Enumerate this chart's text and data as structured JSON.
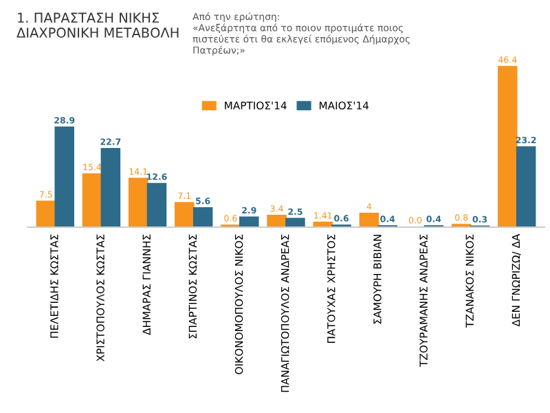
{
  "chart_data": {
    "type": "bar",
    "title": "1. ΠΑΡΑΣΤΑΣΗ ΝΙΚΗΣ\nΔΙΑΧΡΟΝΙΚΗ ΜΕΤΑΒΟΛΗ",
    "subtitle": "Από την ερώτηση:\n«Ανεξάρτητα από το ποιον προτιμάτε ποιος\nπιστεύετε ότι θα εκλεγεί επόμενος Δήμαρχος\nΠατρέων;»",
    "categories": [
      "ΠΕΛΕΤΙΔΗΣ ΚΩΣΤΑΣ",
      "ΧΡΙΣΤΟΠΟΥΛΟΣ ΚΩΣΤΑΣ",
      "ΔΗΜΑΡΑΣ ΓΙΑΝΝΗΣ",
      "ΣΠΑΡΤΙΝΟΣ ΚΩΣΤΑΣ",
      "ΟΙΚΟΝΟΜΟΠΟΥΛΟΣ ΝΙΚΟΣ",
      "ΠΑΝΑΓΙΩΤΟΠΟΥΛΟΣ ΑΝΔΡΕΑΣ",
      "ΠΑΤΟΥΧΑΣ ΧΡΗΣΤΟΣ",
      "ΣΑΜΟΥΡΗ ΒΙΒΙΑΝ",
      "ΤΖΟΥΡΑΜΑΝΗΣ ΑΝΔΡΕΑΣ",
      "ΤΖΑΝΑΚΟΣ ΝΙΚΟΣ",
      "ΔΕΝ ΓΝΩΡΙΖΩ/ ΔΑ"
    ],
    "series": [
      {
        "name": "ΜΑΡΤΙΟΣ'14",
        "color": "#f7941d",
        "values": [
          7.5,
          15.4,
          14.1,
          7.1,
          0.6,
          3.4,
          1.41,
          4,
          0.0,
          0.8,
          46.4
        ],
        "value_labels": [
          "7.5",
          "15.4",
          "14.1",
          "7.1",
          "0.6",
          "3.4",
          "1.41",
          "4",
          "0.0",
          "0.8",
          "46.4"
        ]
      },
      {
        "name": "ΜΑΙΟΣ'14",
        "color": "#2e6b8a",
        "values": [
          28.9,
          22.7,
          12.6,
          5.6,
          2.9,
          2.5,
          0.6,
          0.4,
          0.4,
          0.3,
          23.2
        ],
        "value_labels": [
          "28.9",
          "22.7",
          "12.6",
          "5.6",
          "2.9",
          "2.5",
          "0.6",
          "0.4",
          "0.4",
          "0.3",
          "23.2"
        ]
      }
    ],
    "legend": "top"
  }
}
